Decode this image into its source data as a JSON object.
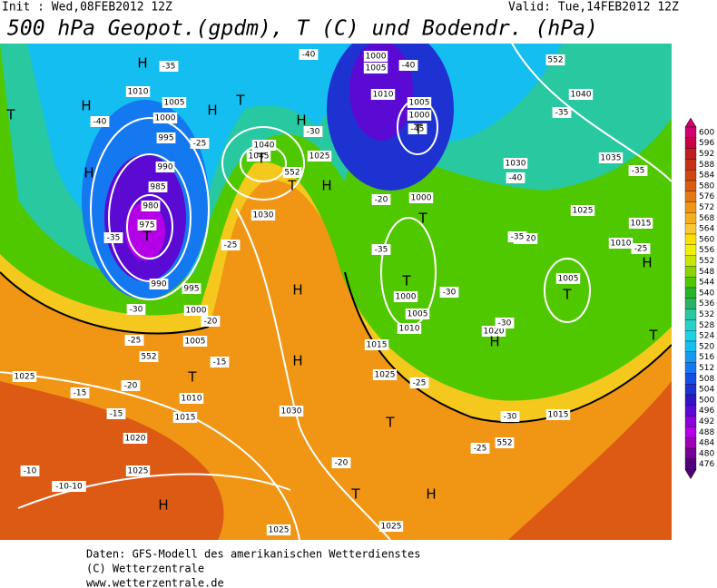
{
  "header": {
    "init": "Init : Wed,08FEB2012 12Z",
    "valid": "Valid: Tue,14FEB2012 12Z",
    "title": "500 hPa Geopot.(gpdm), T (C) und Bodendr. (hPa)"
  },
  "map_labels": [
    "1010",
    "1005",
    "1000",
    "995",
    "990",
    "985",
    "980",
    "975",
    "990",
    "995",
    "1000",
    "1005",
    "1010",
    "1015",
    "1020",
    "1025",
    "1025",
    "1030",
    "1030",
    "1040",
    "1045",
    "1025",
    "1000",
    "1005",
    "1010",
    "1005",
    "1000",
    "1030",
    "1040",
    "1035",
    "1025",
    "1015",
    "1010",
    "1005",
    "1020",
    "1015",
    "1025",
    "1015",
    "1010",
    "1005",
    "1000",
    "1000",
    "1020",
    "1025",
    "1025",
    "-35",
    "-40",
    "-35",
    "-30",
    "-25",
    "-20",
    "-15",
    "-15",
    "-10",
    "-10-10",
    "-25",
    "-20",
    "-25",
    "-15",
    "-40",
    "-40",
    "-45",
    "-40",
    "-35",
    "-35",
    "-30",
    "-30",
    "-25",
    "-30",
    "-25",
    "-20",
    "-35",
    "-30",
    "-25",
    "-20",
    "-35",
    "552",
    "552",
    "552",
    "552",
    "H",
    "H",
    "H",
    "T",
    "H",
    "T",
    "T",
    "H",
    "T",
    "H",
    "H",
    "H",
    "T",
    "T",
    "T",
    "H",
    "H",
    "T",
    "T",
    "T",
    "T",
    "H",
    "T",
    "H",
    "T"
  ],
  "colorbar": {
    "ticks": [
      600,
      596,
      592,
      588,
      584,
      580,
      576,
      572,
      568,
      564,
      560,
      556,
      552,
      548,
      544,
      540,
      536,
      532,
      528,
      524,
      520,
      516,
      512,
      508,
      504,
      500,
      496,
      492,
      488,
      484,
      480,
      476
    ],
    "colors": [
      "#d2006e",
      "#c80046",
      "#be1e1e",
      "#c83214",
      "#d24614",
      "#dc5a14",
      "#e67814",
      "#f09614",
      "#f5af1e",
      "#fac832",
      "#fae100",
      "#f0f000",
      "#c8e600",
      "#8cd200",
      "#50c800",
      "#28b428",
      "#28b464",
      "#28c8a0",
      "#28d2c8",
      "#1ed2e6",
      "#14bef0",
      "#149bf0",
      "#1478f0",
      "#1450e6",
      "#1e32d2",
      "#3214c8",
      "#5a0ad2",
      "#8c00dc",
      "#b400e6",
      "#a000b4",
      "#780096",
      "#500078"
    ]
  },
  "footer": [
    "Daten: GFS-Modell des amerikanischen Wetterdienstes",
    "(C) Wetterzentrale",
    "www.wetterzentrale.de"
  ]
}
